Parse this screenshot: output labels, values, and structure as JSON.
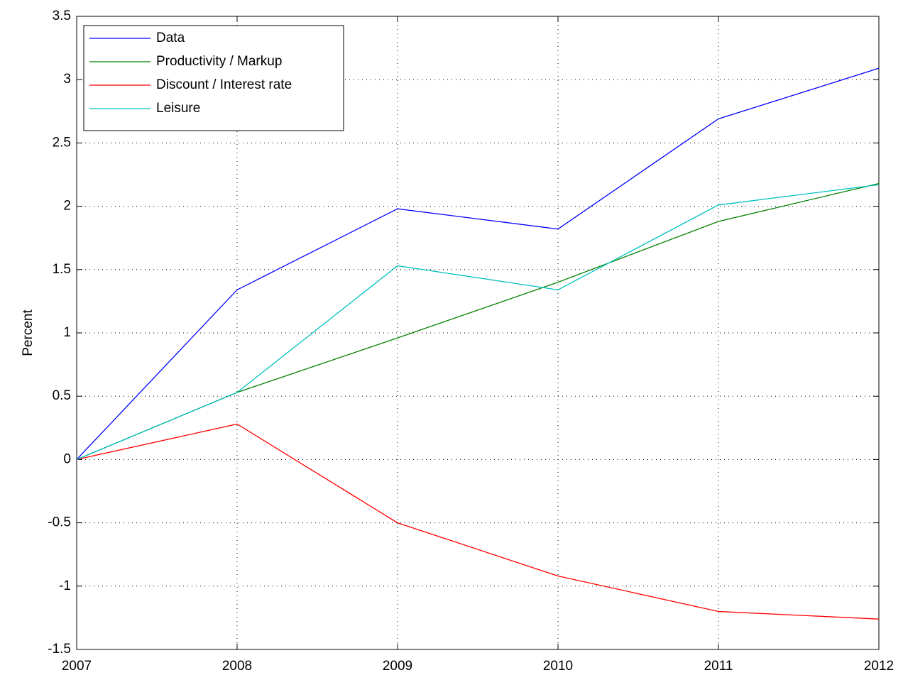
{
  "chart_data": {
    "type": "line",
    "y_label": "Percent",
    "x": [
      2007,
      2008,
      2009,
      2010,
      2011,
      2012
    ],
    "series": [
      {
        "name": "Data",
        "color": "#0000ff",
        "values": [
          0,
          1.34,
          1.98,
          1.82,
          2.69,
          3.09
        ]
      },
      {
        "name": "Productivity / Markup",
        "color": "#008000",
        "values": [
          0,
          0.53,
          0.96,
          1.4,
          1.88,
          2.18
        ]
      },
      {
        "name": "Discount / Interest rate",
        "color": "#ff0000",
        "values": [
          0,
          0.28,
          -0.5,
          -0.92,
          -1.2,
          -1.26
        ]
      },
      {
        "name": "Leisure",
        "color": "#00bfbf",
        "values": [
          0,
          0.53,
          1.53,
          1.34,
          2.01,
          2.17
        ]
      }
    ],
    "xlim": [
      2007,
      2012
    ],
    "xticks": [
      2007,
      2008,
      2009,
      2010,
      2011,
      2012
    ],
    "ylim": [
      -1.5,
      3.5
    ],
    "yticks": [
      -1.5,
      -1,
      -0.5,
      0,
      0.5,
      1,
      1.5,
      2,
      2.5,
      3,
      3.5
    ],
    "grid": true,
    "legend": "upper-left"
  }
}
